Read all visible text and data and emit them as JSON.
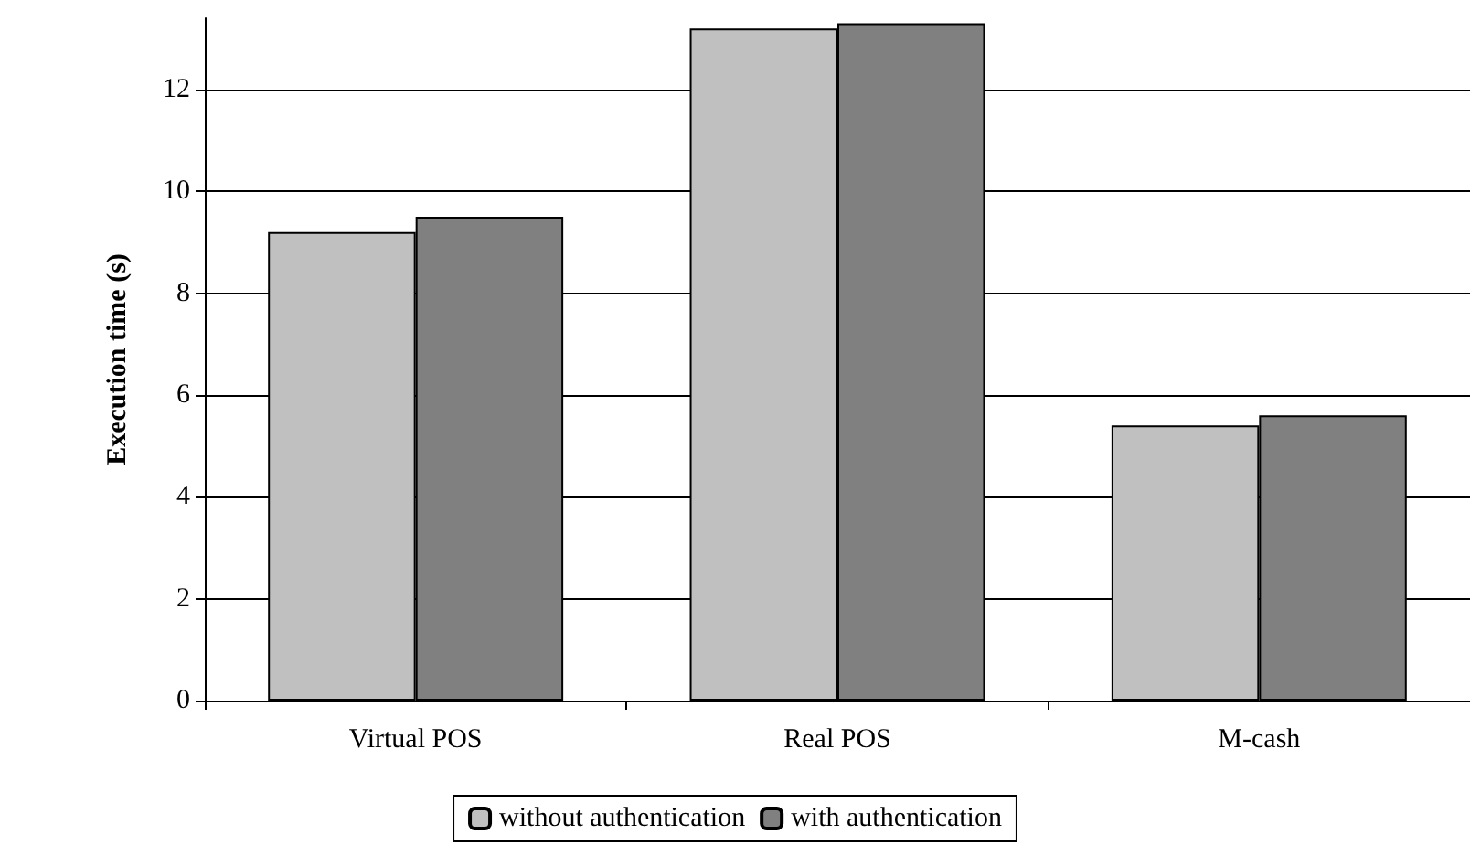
{
  "chart_data": {
    "type": "bar",
    "ylabel": "Execution time (s)",
    "categories": [
      "Virtual POS",
      "Real POS",
      "M-cash"
    ],
    "series": [
      {
        "name": "without authentication",
        "color": "#c0c0c0",
        "values": [
          9.2,
          13.2,
          5.4
        ]
      },
      {
        "name": "with authentication",
        "color": "#808080",
        "values": [
          9.5,
          13.3,
          5.6
        ]
      }
    ],
    "ylim": [
      0,
      13.4
    ],
    "yticks": [
      0,
      2,
      4,
      6,
      8,
      10,
      12
    ],
    "grid": "y",
    "legend": "bottom"
  }
}
